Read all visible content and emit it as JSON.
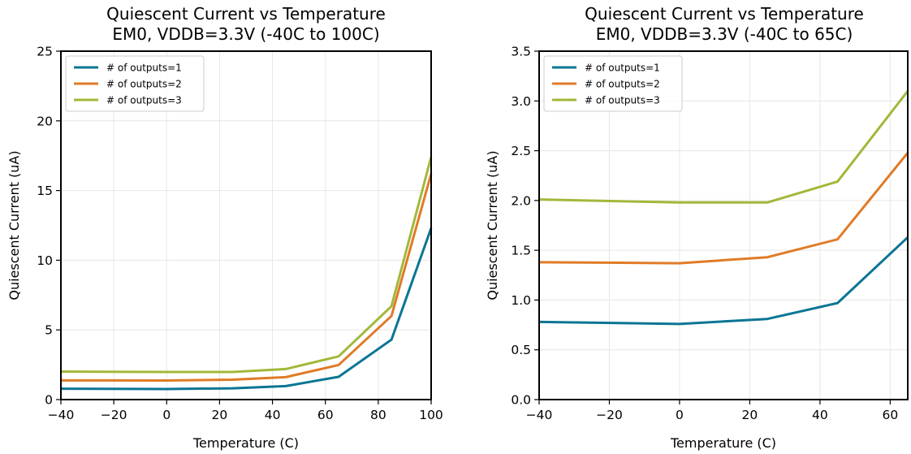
{
  "chart_data": [
    {
      "type": "line",
      "title": "Quiescent Current vs Temperature",
      "subtitle": "EM0, VDDB=3.3V (-40C to 100C)",
      "xlabel": "Temperature (C)",
      "ylabel": "Quiescent Current (uA)",
      "xlim": [
        -40,
        100
      ],
      "ylim": [
        0,
        25
      ],
      "xticks": [
        -40,
        -20,
        0,
        20,
        40,
        60,
        80,
        100
      ],
      "xtick_labels": [
        "−40",
        "−20",
        "0",
        "20",
        "40",
        "60",
        "80",
        "100"
      ],
      "yticks": [
        0,
        5,
        10,
        15,
        20,
        25
      ],
      "ytick_labels": [
        "0",
        "5",
        "10",
        "15",
        "20",
        "25"
      ],
      "grid": true,
      "legend_position": "top-left",
      "x": [
        -40,
        0,
        25,
        45,
        65,
        85,
        100
      ],
      "series": [
        {
          "name": "# of outputs=1",
          "color": "#0b7595",
          "values": [
            0.78,
            0.76,
            0.81,
            0.97,
            1.63,
            4.3,
            12.3
          ]
        },
        {
          "name": "# of outputs=2",
          "color": "#e07b27",
          "values": [
            1.38,
            1.37,
            1.43,
            1.61,
            2.48,
            6.0,
            16.2
          ]
        },
        {
          "name": "# of outputs=3",
          "color": "#a2b83a",
          "values": [
            2.01,
            1.98,
            1.98,
            2.19,
            3.1,
            6.7,
            17.4
          ]
        }
      ]
    },
    {
      "type": "line",
      "title": "Quiescent Current vs Temperature",
      "subtitle": "EM0, VDDB=3.3V (-40C to 65C)",
      "xlabel": "Temperature (C)",
      "ylabel": "Quiescent Current (uA)",
      "xlim": [
        -40,
        65
      ],
      "ylim": [
        0,
        3.5
      ],
      "xticks": [
        -40,
        -20,
        0,
        20,
        40,
        60
      ],
      "xtick_labels": [
        "−40",
        "−20",
        "0",
        "20",
        "40",
        "60"
      ],
      "yticks": [
        0,
        0.5,
        1,
        1.5,
        2,
        2.5,
        3,
        3.5
      ],
      "ytick_labels": [
        "0.0",
        "0.5",
        "1.0",
        "1.5",
        "2.0",
        "2.5",
        "3.0",
        "3.5"
      ],
      "grid": true,
      "legend_position": "top-left",
      "x": [
        -40,
        0,
        25,
        45,
        65
      ],
      "series": [
        {
          "name": "# of outputs=1",
          "color": "#0b7595",
          "values": [
            0.78,
            0.76,
            0.81,
            0.97,
            1.63
          ]
        },
        {
          "name": "# of outputs=2",
          "color": "#e07b27",
          "values": [
            1.38,
            1.37,
            1.43,
            1.61,
            2.48
          ]
        },
        {
          "name": "# of outputs=3",
          "color": "#a2b83a",
          "values": [
            2.01,
            1.98,
            1.98,
            2.19,
            3.1
          ]
        }
      ]
    }
  ]
}
